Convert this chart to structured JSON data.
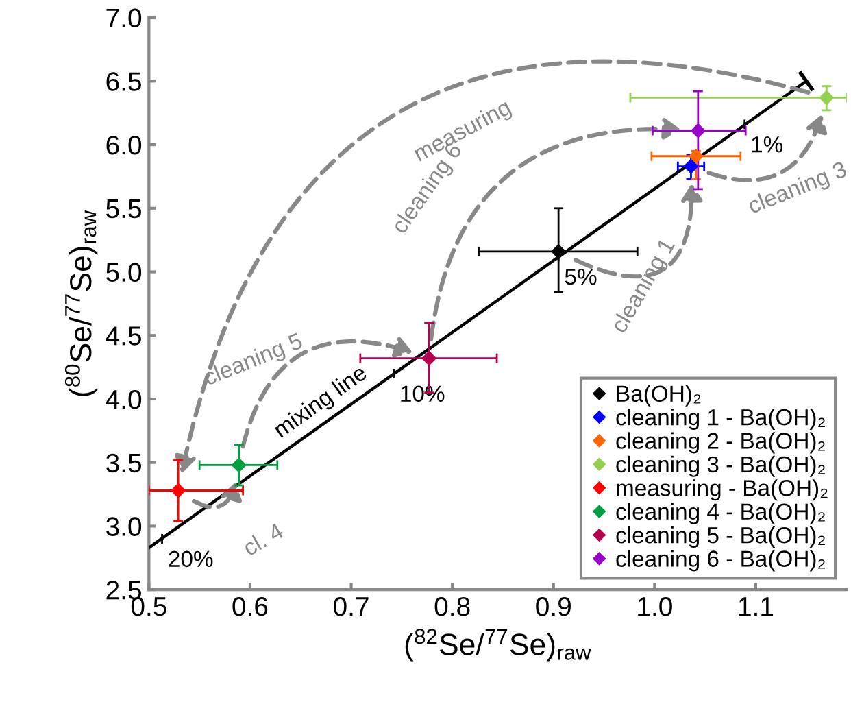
{
  "chart_data": {
    "type": "scatter",
    "xlabel": "($^{82}$Se/$^{77}$Se)$_{raw}$",
    "ylabel": "($^{80}$Se/$^{77}$Se)$_{raw}$",
    "xlim": [
      0.5,
      1.19
    ],
    "ylim": [
      2.5,
      7.0
    ],
    "xticks": [
      0.5,
      0.6,
      0.7,
      0.8,
      0.9,
      {
        "value": 1.0,
        "label": "1.0"
      },
      1.1
    ],
    "yticks": [
      2.5,
      {
        "value": 3.0,
        "label": "3.0"
      },
      3.5,
      {
        "value": 4.0,
        "label": "4.0"
      },
      4.5,
      {
        "value": 5.0,
        "label": "5.0"
      },
      5.5,
      {
        "value": 6.0,
        "label": "6.0"
      },
      6.5,
      {
        "value": 7.0,
        "label": "7.0"
      }
    ],
    "grid": false,
    "legend": "bottom right",
    "marker": "diamond",
    "series": [
      {
        "name": "Ba(OH)₂",
        "color": "#000000",
        "x": [
          0.905
        ],
        "values": [
          5.16
        ],
        "errors": [
          [
            4.84,
            5.5
          ]
        ],
        "xerrors": [
          [
            0.826,
            0.983
          ]
        ]
      },
      {
        "name": "cleaning 1 - Ba(OH)₂",
        "color": "#0000ff",
        "x": [
          1.036
        ],
        "values": [
          5.83
        ],
        "errors": [
          [
            5.73,
            5.92
          ]
        ],
        "xerrors": [
          [
            1.023,
            1.049
          ]
        ]
      },
      {
        "name": "cleaning 2 - Ba(OH)₂",
        "color": "#ff6600",
        "x": [
          1.041
        ],
        "values": [
          5.91
        ],
        "errors": [
          [
            5.73,
            5.95
          ]
        ],
        "xerrors": [
          [
            0.997,
            1.085
          ]
        ]
      },
      {
        "name": "cleaning 3 - Ba(OH)₂",
        "color": "#92d050",
        "x": [
          1.17
        ],
        "values": [
          6.37
        ],
        "errors": [
          [
            6.27,
            6.46
          ]
        ],
        "xerrors": [
          [
            0.976,
            1.19
          ]
        ]
      },
      {
        "name": "measuring - Ba(OH)₂",
        "color": "#ff0000",
        "x": [
          0.529
        ],
        "values": [
          3.28
        ],
        "errors": [
          [
            3.04,
            3.52
          ]
        ],
        "xerrors": [
          [
            0.5,
            0.593
          ]
        ]
      },
      {
        "name": "cleaning 4 - Ba(OH)₂",
        "color": "#00a040",
        "x": [
          0.589
        ],
        "values": [
          3.48
        ],
        "errors": [
          [
            3.32,
            3.64
          ]
        ],
        "xerrors": [
          [
            0.55,
            0.627
          ]
        ]
      },
      {
        "name": "cleaning 5 - Ba(OH)₂",
        "color": "#b5004f",
        "x": [
          0.777
        ],
        "values": [
          4.32
        ],
        "errors": [
          [
            4.05,
            4.6
          ]
        ],
        "xerrors": [
          [
            0.709,
            0.844
          ]
        ]
      },
      {
        "name": "cleaning 6 - Ba(OH)₂",
        "color": "#9900cc",
        "x": [
          1.043
        ],
        "values": [
          6.11
        ],
        "errors": [
          [
            5.65,
            6.42
          ]
        ],
        "xerrors": [
          [
            0.998,
            1.09
          ]
        ]
      },
      {
        "name": "mixing line",
        "type": "line",
        "color": "#000000",
        "x": [
          0.5,
          1.15
        ],
        "values": [
          2.83,
          6.5
        ]
      }
    ],
    "annotations": [
      {
        "text": "20%",
        "x": 0.513,
        "y": 2.9
      },
      {
        "text": "10%",
        "x": 0.742,
        "y": 4.2
      },
      {
        "text": "5%",
        "x": 0.905,
        "y": 5.12
      },
      {
        "text": "1%",
        "x": 1.089,
        "y": 6.16
      },
      "cleaning 1",
      "cleaning 3",
      "measuring",
      "cl. 4",
      "cleaning 5",
      "cleaning 6"
    ]
  }
}
